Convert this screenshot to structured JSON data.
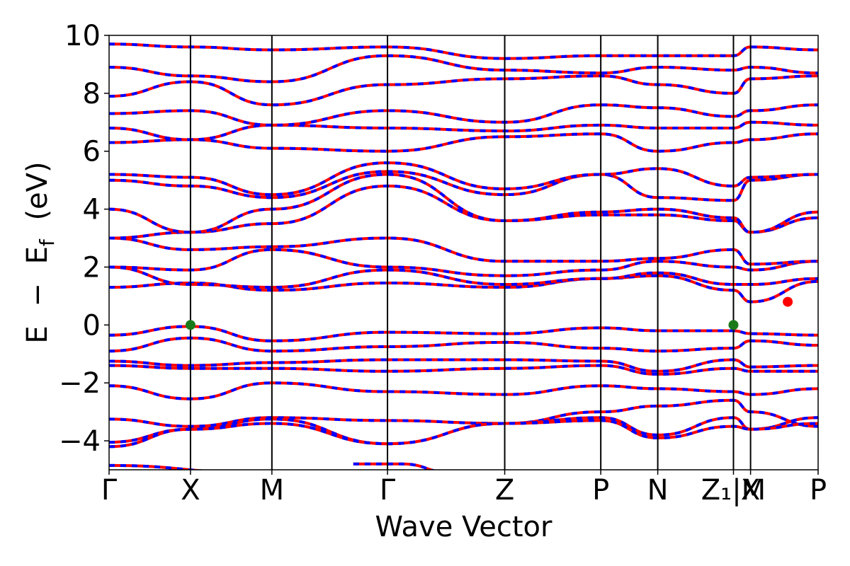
{
  "chart_data": {
    "type": "line",
    "xlabel": "Wave Vector",
    "ylabel_parts": {
      "e": "E",
      "minus": "−",
      "ef_base": "E",
      "ef_sub": "f",
      "unit": "(eV)"
    },
    "ylim": [
      -5,
      10
    ],
    "yticks": [
      {
        "value": 10,
        "label": "10"
      },
      {
        "value": 8,
        "label": "8"
      },
      {
        "value": 6,
        "label": "6"
      },
      {
        "value": 4,
        "label": "4"
      },
      {
        "value": 2,
        "label": "2"
      },
      {
        "value": 0,
        "label": "0"
      },
      {
        "value": -2,
        "label": "−2"
      },
      {
        "value": -4,
        "label": "−4"
      }
    ],
    "kpath_ticks": [
      {
        "label": "Γ"
      },
      {
        "label": "X"
      },
      {
        "label": "M"
      },
      {
        "label": "Γ"
      },
      {
        "label": "Z"
      },
      {
        "label": "P"
      },
      {
        "label": "N"
      },
      {
        "label": "Z₁|M"
      },
      {
        "label": "X"
      },
      {
        "label": "P"
      }
    ],
    "segments": [
      {
        "from": "Γ",
        "to": "X",
        "length": 1.0
      },
      {
        "from": "X",
        "to": "M",
        "length": 1.0
      },
      {
        "from": "M",
        "to": "Γ",
        "length": 1.42
      },
      {
        "from": "Γ",
        "to": "Z",
        "length": 1.44
      },
      {
        "from": "Z",
        "to": "P",
        "length": 1.18
      },
      {
        "from": "P",
        "to": "N",
        "length": 0.7
      },
      {
        "from": "N",
        "to": "Z₁",
        "length": 0.93
      },
      {
        "from": "M",
        "to": "X",
        "length": 0.21
      },
      {
        "from": "X",
        "to": "P",
        "length": 0.83
      }
    ],
    "series": [
      {
        "style": "spin-up",
        "color": "#0000ff",
        "dash": "dashed"
      },
      {
        "style": "spin-down",
        "color": "#ff0000",
        "dash": "solid"
      }
    ],
    "bands": [
      [
        -0.35,
        -0.05,
        -0.55,
        -0.25,
        -0.3,
        -0.1,
        -0.2,
        -0.2,
        -0.3,
        -0.35
      ],
      [
        -0.9,
        -0.45,
        -0.9,
        -0.75,
        -0.6,
        -0.8,
        -0.9,
        -0.8,
        -0.55,
        -0.7
      ],
      [
        -1.25,
        -1.4,
        -1.3,
        -1.2,
        -1.2,
        -1.25,
        -1.6,
        -1.2,
        -1.45,
        -1.4
      ],
      [
        -1.4,
        -1.5,
        -1.5,
        -1.6,
        -1.5,
        -1.4,
        -1.7,
        -1.5,
        -1.6,
        -1.6
      ],
      [
        -2.1,
        -2.55,
        -2.0,
        -2.3,
        -2.4,
        -2.1,
        -2.2,
        -2.3,
        -2.4,
        -2.2
      ],
      [
        -3.25,
        -3.5,
        -3.2,
        -3.3,
        -3.4,
        -3.0,
        -2.8,
        -2.6,
        -3.0,
        -3.5
      ],
      [
        -4.05,
        -3.6,
        -3.25,
        -4.1,
        -3.4,
        -3.2,
        -3.8,
        -3.2,
        -3.6,
        -3.2
      ],
      [
        -4.2,
        -3.6,
        -3.4,
        -4.1,
        -3.4,
        -3.3,
        -3.9,
        -3.5,
        -3.6,
        -3.4
      ],
      [
        1.3,
        1.45,
        1.2,
        1.45,
        1.3,
        1.6,
        1.7,
        1.2,
        0.8,
        1.5
      ],
      [
        2.0,
        1.4,
        1.3,
        1.9,
        1.4,
        1.6,
        1.8,
        1.4,
        1.4,
        1.6
      ],
      [
        2.0,
        1.9,
        2.6,
        2.0,
        1.7,
        1.9,
        2.2,
        2.0,
        1.9,
        2.2
      ],
      [
        3.0,
        2.6,
        2.7,
        3.0,
        2.2,
        2.2,
        2.3,
        2.6,
        2.1,
        2.2
      ],
      [
        3.0,
        3.2,
        3.5,
        4.8,
        3.6,
        3.8,
        3.8,
        3.6,
        3.2,
        3.7
      ],
      [
        4.0,
        3.2,
        4.0,
        5.2,
        3.6,
        3.9,
        4.0,
        3.7,
        3.2,
        3.9
      ],
      [
        5.0,
        4.8,
        4.4,
        5.3,
        4.5,
        5.2,
        4.4,
        4.3,
        5.0,
        5.2
      ],
      [
        5.2,
        5.1,
        4.5,
        5.6,
        4.7,
        5.2,
        5.4,
        4.8,
        5.1,
        5.2
      ],
      [
        6.3,
        6.4,
        6.1,
        6.0,
        6.5,
        6.6,
        6.0,
        6.3,
        6.4,
        6.6
      ],
      [
        6.8,
        6.4,
        6.9,
        6.8,
        6.7,
        6.9,
        6.8,
        6.8,
        7.0,
        6.9
      ],
      [
        7.3,
        7.4,
        6.9,
        7.4,
        7.0,
        7.6,
        7.5,
        7.2,
        7.4,
        7.6
      ],
      [
        7.9,
        8.4,
        7.6,
        8.3,
        8.5,
        8.6,
        8.3,
        8.0,
        8.5,
        8.6
      ],
      [
        8.9,
        8.6,
        8.4,
        9.3,
        8.8,
        8.7,
        8.9,
        8.8,
        8.9,
        8.7
      ],
      [
        9.7,
        9.6,
        9.5,
        9.6,
        9.2,
        9.3,
        9.3,
        9.3,
        9.6,
        9.5
      ]
    ],
    "extra_bands": [
      {
        "start": 0.0,
        "end": 1.8,
        "values": [
          -4.85,
          -5.1
        ]
      },
      {
        "start": 3.0,
        "end": 4.2,
        "values": [
          -4.8,
          -4.8,
          -5.1
        ]
      }
    ],
    "markers": [
      {
        "kind": "VBM",
        "at": "X",
        "energy": 0.0,
        "color": "#1a7a1a"
      },
      {
        "kind": "VBM",
        "at": "Z₁|M",
        "energy": 0.0,
        "color": "#1a7a1a"
      },
      {
        "kind": "CBM",
        "at_fraction_of_segment": 0.55,
        "segment": "X–P",
        "energy": 0.8,
        "color": "#ff0000"
      }
    ]
  }
}
